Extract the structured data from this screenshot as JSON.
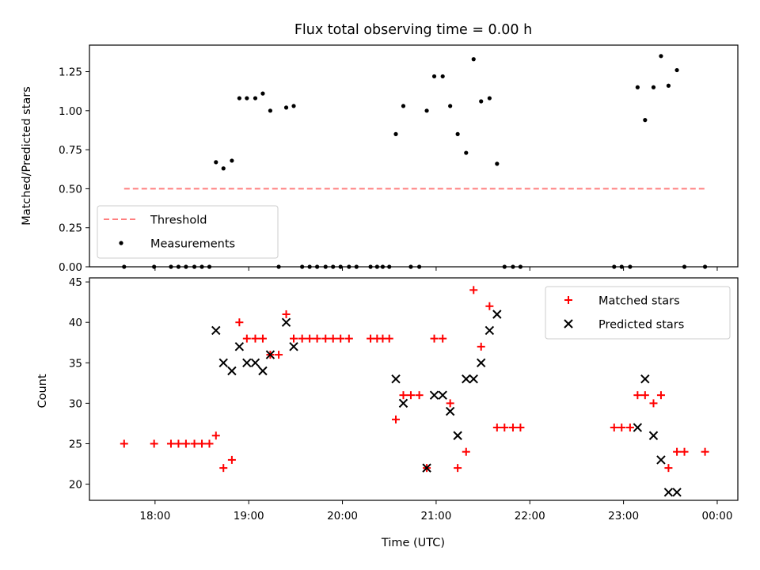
{
  "chart_data": [
    {
      "type": "scatter",
      "title": "Flux total observing time = 0.00 h",
      "xlabel": "",
      "ylabel": "Matched/Predicted stars",
      "xlim": [
        17.3,
        24.22
      ],
      "ylim": [
        0.0,
        1.42
      ],
      "yticks": [
        0.0,
        0.25,
        0.5,
        0.75,
        1.0,
        1.25
      ],
      "ytick_labels": [
        "0.00",
        "0.25",
        "0.50",
        "0.75",
        "1.00",
        "1.25"
      ],
      "xticks": [
        18,
        19,
        20,
        21,
        22,
        23,
        24
      ],
      "grid": false,
      "legend": {
        "position": "lower-left",
        "entries": [
          "Threshold",
          "Measurements"
        ]
      },
      "threshold": {
        "name": "Threshold",
        "y": 0.5,
        "x": [
          17.67,
          23.87
        ],
        "color": "#ff7f7f"
      },
      "series": [
        {
          "name": "Measurements",
          "color": "#000000",
          "x": [
            17.67,
            17.99,
            18.17,
            18.25,
            18.33,
            18.42,
            18.5,
            18.58,
            18.65,
            18.73,
            18.82,
            18.9,
            18.98,
            19.07,
            19.15,
            19.23,
            19.32,
            19.4,
            19.48,
            19.57,
            19.65,
            19.73,
            19.82,
            19.9,
            19.98,
            20.07,
            20.15,
            20.3,
            20.37,
            20.43,
            20.5,
            20.57,
            20.65,
            20.73,
            20.82,
            20.9,
            20.98,
            21.07,
            21.15,
            21.23,
            21.32,
            21.4,
            21.48,
            21.57,
            21.65,
            21.73,
            21.82,
            21.9,
            22.9,
            22.98,
            23.07,
            23.15,
            23.23,
            23.32,
            23.4,
            23.48,
            23.57,
            23.65,
            23.87
          ],
          "y": [
            0.0,
            0.0,
            0.0,
            0.0,
            0.0,
            0.0,
            0.0,
            0.0,
            0.67,
            0.63,
            0.68,
            1.08,
            1.08,
            1.08,
            1.11,
            1.0,
            0.0,
            1.02,
            1.03,
            0.0,
            0.0,
            0.0,
            0.0,
            0.0,
            0.0,
            0.0,
            0.0,
            0.0,
            0.0,
            0.0,
            0.0,
            0.85,
            1.03,
            0.0,
            0.0,
            1.0,
            1.22,
            1.22,
            1.03,
            0.85,
            0.73,
            1.33,
            1.06,
            1.08,
            0.66,
            0.0,
            0.0,
            0.0,
            0.0,
            0.0,
            0.0,
            1.15,
            0.94,
            1.15,
            1.35,
            1.16,
            1.26,
            0.0,
            0.0
          ]
        }
      ]
    },
    {
      "type": "scatter",
      "title": "",
      "xlabel": "Time (UTC)",
      "ylabel": "Count",
      "xlim": [
        17.3,
        24.22
      ],
      "ylim": [
        18.0,
        45.5
      ],
      "yticks": [
        20,
        25,
        30,
        35,
        40,
        45
      ],
      "ytick_labels": [
        "20",
        "25",
        "30",
        "35",
        "40",
        "45"
      ],
      "xticks": [
        18,
        19,
        20,
        21,
        22,
        23,
        24
      ],
      "xtick_labels": [
        "18:00",
        "19:00",
        "20:00",
        "21:00",
        "22:00",
        "23:00",
        "00:00"
      ],
      "grid": false,
      "legend": {
        "position": "upper-right",
        "entries": [
          "Matched stars",
          "Predicted stars"
        ]
      },
      "series": [
        {
          "name": "Matched stars",
          "marker": "+",
          "color": "#ff0000",
          "x": [
            17.67,
            17.99,
            18.17,
            18.25,
            18.33,
            18.42,
            18.5,
            18.58,
            18.65,
            18.73,
            18.82,
            18.9,
            18.98,
            19.07,
            19.15,
            19.23,
            19.32,
            19.4,
            19.48,
            19.57,
            19.65,
            19.73,
            19.82,
            19.9,
            19.98,
            20.07,
            20.3,
            20.37,
            20.43,
            20.5,
            20.57,
            20.65,
            20.73,
            20.82,
            20.9,
            20.98,
            21.07,
            21.15,
            21.23,
            21.32,
            21.4,
            21.48,
            21.57,
            21.65,
            21.73,
            21.82,
            21.9,
            22.9,
            22.98,
            23.07,
            23.15,
            23.23,
            23.32,
            23.4,
            23.48,
            23.57,
            23.65,
            23.87
          ],
          "y": [
            25,
            25,
            25,
            25,
            25,
            25,
            25,
            25,
            26,
            22,
            23,
            40,
            38,
            38,
            38,
            36,
            36,
            41,
            38,
            38,
            38,
            38,
            38,
            38,
            38,
            38,
            38,
            38,
            38,
            38,
            28,
            31,
            31,
            31,
            22,
            38,
            38,
            30,
            22,
            24,
            44,
            37,
            42,
            27,
            27,
            27,
            27,
            27,
            27,
            27,
            31,
            31,
            30,
            31,
            22,
            24,
            24,
            24
          ]
        },
        {
          "name": "Predicted stars",
          "marker": "x",
          "color": "#000000",
          "x": [
            18.65,
            18.73,
            18.82,
            18.9,
            18.98,
            19.07,
            19.15,
            19.23,
            19.4,
            19.48,
            20.57,
            20.65,
            20.9,
            20.98,
            21.07,
            21.15,
            21.23,
            21.32,
            21.4,
            21.48,
            21.57,
            21.65,
            23.15,
            23.23,
            23.32,
            23.4,
            23.48,
            23.57
          ],
          "y": [
            39,
            35,
            34,
            37,
            35,
            35,
            34,
            36,
            40,
            37,
            33,
            30,
            22,
            31,
            31,
            29,
            26,
            33,
            33,
            35,
            39,
            41,
            27,
            33,
            26,
            23,
            19,
            19
          ]
        }
      ]
    }
  ]
}
